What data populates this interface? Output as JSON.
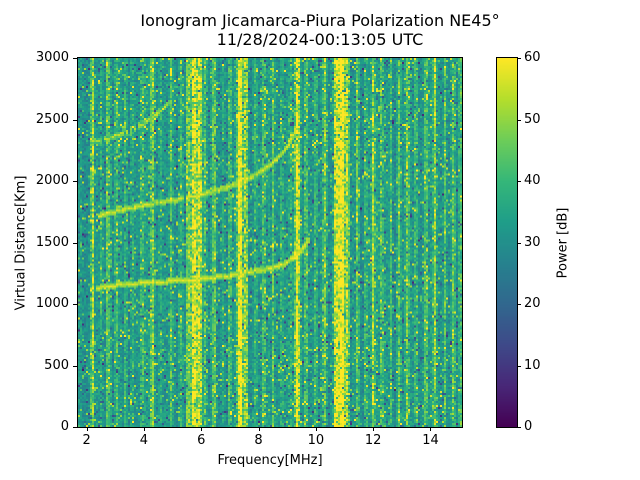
{
  "figure": {
    "title": "Ionogram Jicamarca-Piura Polarization NE45°",
    "subtitle": "11/28/2024-00:13:05 UTC"
  },
  "chart_data": {
    "type": "heatmap",
    "title": "Ionogram Jicamarca-Piura Polarization NE45°",
    "subtitle": "11/28/2024-00:13:05 UTC",
    "xlabel": "Frequency[MHz]",
    "ylabel": "Virtual Distance[Km]",
    "colorbar_label": "Power [dB]",
    "colormap": "viridis",
    "colormap_anchors": [
      "#440154",
      "#3b528b",
      "#21918c",
      "#5ec962",
      "#fde725"
    ],
    "xlim": [
      1.7,
      15.1
    ],
    "ylim": [
      0,
      3000
    ],
    "clim": [
      0,
      60
    ],
    "xticks": [
      2,
      4,
      6,
      8,
      10,
      12,
      14
    ],
    "yticks": [
      0,
      500,
      1000,
      1500,
      2000,
      2500,
      3000
    ],
    "colorbar_ticks": [
      0,
      10,
      20,
      30,
      40,
      50,
      60
    ],
    "grid": false,
    "legend": false,
    "background_noise_db": {
      "mean": 31,
      "spread": 8
    },
    "rfi_stripes_mhz_amp_width": [
      [
        2.2,
        22,
        0.05
      ],
      [
        2.5,
        10,
        0.04
      ],
      [
        2.75,
        16,
        0.05
      ],
      [
        3.05,
        12,
        0.04
      ],
      [
        3.35,
        8,
        0.04
      ],
      [
        3.6,
        10,
        0.04
      ],
      [
        3.95,
        14,
        0.05
      ],
      [
        4.3,
        18,
        0.05
      ],
      [
        4.6,
        8,
        0.04
      ],
      [
        4.95,
        12,
        0.05
      ],
      [
        5.3,
        10,
        0.04
      ],
      [
        5.55,
        20,
        0.05
      ],
      [
        5.75,
        34,
        0.07
      ],
      [
        5.95,
        30,
        0.06
      ],
      [
        6.15,
        12,
        0.04
      ],
      [
        6.45,
        16,
        0.05
      ],
      [
        6.75,
        8,
        0.04
      ],
      [
        7.0,
        12,
        0.04
      ],
      [
        7.35,
        40,
        0.07
      ],
      [
        7.55,
        24,
        0.05
      ],
      [
        7.9,
        8,
        0.04
      ],
      [
        8.2,
        14,
        0.05
      ],
      [
        8.5,
        12,
        0.04
      ],
      [
        8.8,
        8,
        0.04
      ],
      [
        9.1,
        10,
        0.04
      ],
      [
        9.35,
        34,
        0.06
      ],
      [
        9.65,
        14,
        0.05
      ],
      [
        10.0,
        10,
        0.04
      ],
      [
        10.3,
        18,
        0.05
      ],
      [
        10.7,
        30,
        0.06
      ],
      [
        10.9,
        40,
        0.08
      ],
      [
        11.1,
        26,
        0.05
      ],
      [
        11.45,
        14,
        0.05
      ],
      [
        11.75,
        10,
        0.04
      ],
      [
        12.0,
        20,
        0.05
      ],
      [
        12.3,
        16,
        0.05
      ],
      [
        12.6,
        10,
        0.04
      ],
      [
        12.9,
        14,
        0.05
      ],
      [
        13.2,
        18,
        0.05
      ],
      [
        13.5,
        12,
        0.04
      ],
      [
        13.85,
        14,
        0.05
      ],
      [
        14.15,
        20,
        0.05
      ],
      [
        14.5,
        12,
        0.04
      ],
      [
        14.8,
        16,
        0.05
      ],
      [
        15.05,
        14,
        0.05
      ]
    ],
    "echo_traces": [
      {
        "name": "first-hop-trace",
        "power_db": 59,
        "continuity": 0.93,
        "points_mhz_km": [
          [
            2.35,
            1140
          ],
          [
            3.0,
            1160
          ],
          [
            4.0,
            1180
          ],
          [
            5.0,
            1195
          ],
          [
            6.0,
            1210
          ],
          [
            7.0,
            1240
          ],
          [
            7.8,
            1270
          ],
          [
            8.4,
            1300
          ],
          [
            8.9,
            1340
          ],
          [
            9.2,
            1390
          ],
          [
            9.5,
            1450
          ],
          [
            9.7,
            1530
          ]
        ]
      },
      {
        "name": "second-hop-trace",
        "power_db": 58,
        "continuity": 0.88,
        "points_mhz_km": [
          [
            2.35,
            1720
          ],
          [
            3.0,
            1760
          ],
          [
            4.0,
            1810
          ],
          [
            5.0,
            1850
          ],
          [
            6.0,
            1895
          ],
          [
            6.8,
            1950
          ],
          [
            7.5,
            2010
          ],
          [
            8.1,
            2090
          ],
          [
            8.6,
            2180
          ],
          [
            9.0,
            2300
          ],
          [
            9.25,
            2420
          ],
          [
            9.4,
            2530
          ]
        ]
      },
      {
        "name": "third-hop-trace",
        "power_db": 55,
        "continuity": 0.5,
        "points_mhz_km": [
          [
            2.25,
            2330
          ],
          [
            2.8,
            2360
          ],
          [
            3.4,
            2410
          ],
          [
            3.9,
            2470
          ],
          [
            4.3,
            2530
          ],
          [
            4.65,
            2600
          ],
          [
            4.9,
            2660
          ]
        ]
      }
    ]
  }
}
